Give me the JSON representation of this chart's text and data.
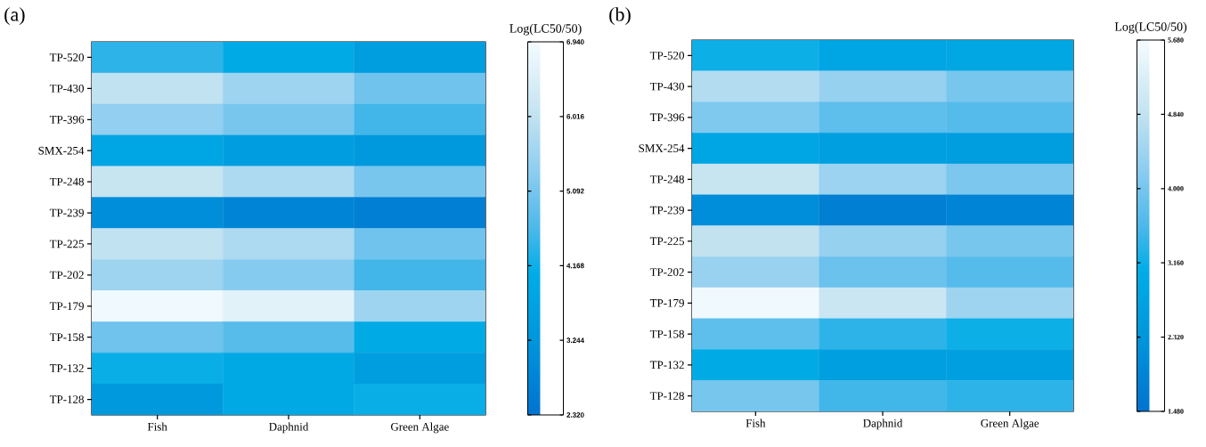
{
  "chart_data": [
    {
      "type": "heatmap",
      "title": "(a)",
      "clabel": "Log(LC50/50)",
      "categories": [
        "Fish",
        "Daphnid",
        "Green Algae"
      ],
      "y_categories": [
        "TP-520",
        "TP-430",
        "TP-396",
        "SMX-254",
        "TP-248",
        "TP-239",
        "TP-225",
        "TP-202",
        "TP-179",
        "TP-158",
        "TP-132",
        "TP-128"
      ],
      "cells": [
        [
          4.4,
          4.0,
          3.5
        ],
        [
          6.0,
          5.55,
          5.0
        ],
        [
          5.4,
          5.1,
          4.55
        ],
        [
          3.8,
          3.55,
          3.35
        ],
        [
          6.1,
          5.75,
          5.1
        ],
        [
          3.0,
          2.8,
          2.65
        ],
        [
          6.0,
          5.75,
          5.0
        ],
        [
          5.55,
          5.25,
          4.55
        ],
        [
          6.85,
          6.6,
          5.55
        ],
        [
          5.0,
          4.75,
          4.0
        ],
        [
          4.15,
          3.9,
          3.5
        ],
        [
          3.35,
          3.9,
          4.15
        ]
      ],
      "clim": [
        2.32,
        6.94
      ],
      "cticks": [
        {
          "value": 2.32,
          "label": "2.320"
        },
        {
          "value": 3.244,
          "label": "3.244"
        },
        {
          "value": 4.168,
          "label": "4.168"
        },
        {
          "value": 5.092,
          "label": "5.092"
        },
        {
          "value": 6.016,
          "label": "6.016"
        },
        {
          "value": 6.94,
          "label": "6.940"
        }
      ]
    },
    {
      "type": "heatmap",
      "title": "(b)",
      "clabel": "Log(LC50/50)",
      "categories": [
        "Fish",
        "Daphnid",
        "Green Algae"
      ],
      "y_categories": [
        "TP-520",
        "TP-430",
        "TP-396",
        "SMX-254",
        "TP-248",
        "TP-239",
        "TP-225",
        "TP-202",
        "TP-179",
        "TP-158",
        "TP-132",
        "TP-128"
      ],
      "cells": [
        [
          3.16,
          2.82,
          2.87
        ],
        [
          4.67,
          4.34,
          4.0
        ],
        [
          4.08,
          3.75,
          3.66
        ],
        [
          2.82,
          2.61,
          2.55
        ],
        [
          4.92,
          4.38,
          4.04
        ],
        [
          2.11,
          1.77,
          1.9
        ],
        [
          4.84,
          4.34,
          4.0
        ],
        [
          4.36,
          3.87,
          3.66
        ],
        [
          5.6,
          4.97,
          4.42
        ],
        [
          3.75,
          3.37,
          3.16
        ],
        [
          3.0,
          2.61,
          2.65
        ],
        [
          4.0,
          3.5,
          3.37
        ]
      ],
      "clim": [
        1.48,
        5.68
      ],
      "cticks": [
        {
          "value": 1.48,
          "label": "1.480"
        },
        {
          "value": 2.32,
          "label": "2.320"
        },
        {
          "value": 3.16,
          "label": "3.160"
        },
        {
          "value": 4.0,
          "label": "4.000"
        },
        {
          "value": 4.84,
          "label": "4.840"
        },
        {
          "value": 5.68,
          "label": "5.680"
        }
      ]
    }
  ]
}
